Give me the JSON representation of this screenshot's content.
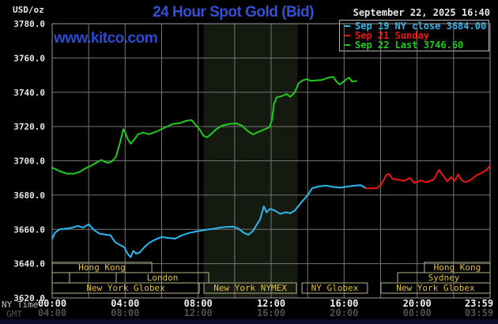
{
  "header": {
    "units_label": "USD/oz",
    "title": "24 Hour Spot Gold (Bid)",
    "datetime": "September 22, 2025 16:40",
    "watermark": "www.kitco.com"
  },
  "colors": {
    "background": "#000000",
    "title_blue": "#3550d4",
    "watermark_blue": "#2c49cf",
    "cyan": "#2cb8f0",
    "red": "#ee1515",
    "green": "#1ecb1e",
    "grid": "#757575",
    "plot_border": "#9a9a9a",
    "session_border": "#b6b686",
    "session_text": "#e3bf3f",
    "axis_text": "#e6e6e6",
    "gmt_text": "#505050",
    "nymex_band": "#151a10",
    "bottom_bar": "#0c0c2c"
  },
  "axes": {
    "y_label_suffix": ".0",
    "y_min": 3620,
    "y_max": 3780,
    "y_step": 20,
    "x_hours": 24,
    "x_grid_step_hours": 2,
    "ny_row_label": "NY Time",
    "gmt_row_label": "GMT",
    "ny_ticks": [
      {
        "hour": 0,
        "label": "00:00"
      },
      {
        "hour": 4,
        "label": "04:00"
      },
      {
        "hour": 8,
        "label": "08:00"
      },
      {
        "hour": 12,
        "label": "12:00"
      },
      {
        "hour": 16,
        "label": "16:00"
      },
      {
        "hour": 20,
        "label": "20:00"
      },
      {
        "hour": 23.98,
        "label": "23:59"
      }
    ],
    "gmt_ticks": [
      {
        "hour": 0,
        "label": "04:00"
      },
      {
        "hour": 4,
        "label": "08:00"
      },
      {
        "hour": 8,
        "label": "12:00"
      },
      {
        "hour": 12,
        "label": "16:00"
      },
      {
        "hour": 16,
        "label": "20:00"
      },
      {
        "hour": 20,
        "label": "00:00"
      },
      {
        "hour": 23.98,
        "label": "03:59"
      }
    ]
  },
  "nymex_band": {
    "start_hour": 8.3,
    "end_hour": 13.45
  },
  "sessions": [
    {
      "row": 0,
      "boxes": [
        {
          "label": "Hong Kong",
          "start_hour": 0,
          "end_hour": 5.46
        },
        {
          "label": "Hong Kong",
          "start_hour": 20.4,
          "end_hour": 24
        }
      ]
    },
    {
      "row": 1,
      "boxes": [
        {
          "label": "",
          "start_hour": 0,
          "end_hour": 0.95
        },
        {
          "label": "",
          "start_hour": 0.95,
          "end_hour": 3.51
        },
        {
          "label": "London",
          "start_hour": 3.51,
          "end_hour": 8.58
        },
        {
          "label": "Sydney",
          "start_hour": 18.93,
          "end_hour": 24
        }
      ]
    },
    {
      "row": 2,
      "boxes": [
        {
          "label": "New York Globex",
          "start_hour": 0,
          "end_hour": 8.06
        },
        {
          "label": "New York NYMEX",
          "start_hour": 8.32,
          "end_hour": 13.39
        },
        {
          "label": "NY Globex",
          "start_hour": 13.69,
          "end_hour": 17.28
        },
        {
          "label": "New York Globex",
          "start_hour": 18.02,
          "end_hour": 24
        }
      ]
    }
  ],
  "chart_data": {
    "type": "line",
    "title": "24 Hour Spot Gold (Bid)",
    "xlabel": "NY Time (hours)",
    "ylabel": "USD/oz",
    "xlim": [
      0,
      24
    ],
    "ylim": [
      3620,
      3780
    ],
    "grid": true,
    "legend_position": "top-right",
    "series": [
      {
        "name": "Sep 19 NY close 3684.00",
        "color_key": "cyan",
        "points": [
          [
            0,
            3654.5
          ],
          [
            0.15,
            3658
          ],
          [
            0.4,
            3660
          ],
          [
            0.8,
            3660.5
          ],
          [
            1.1,
            3661
          ],
          [
            1.4,
            3662
          ],
          [
            1.7,
            3661
          ],
          [
            2.0,
            3663
          ],
          [
            2.3,
            3659.5
          ],
          [
            2.6,
            3657.5
          ],
          [
            2.9,
            3657
          ],
          [
            3.2,
            3656.5
          ],
          [
            3.45,
            3652.5
          ],
          [
            3.7,
            3651
          ],
          [
            3.95,
            3649.5
          ],
          [
            4.15,
            3645.5
          ],
          [
            4.3,
            3643.8
          ],
          [
            4.45,
            3647.5
          ],
          [
            4.6,
            3645.8
          ],
          [
            4.8,
            3646.5
          ],
          [
            5.0,
            3649
          ],
          [
            5.3,
            3652
          ],
          [
            5.6,
            3653.8
          ],
          [
            6.0,
            3655.6
          ],
          [
            6.35,
            3655
          ],
          [
            6.75,
            3654.6
          ],
          [
            7.1,
            3656.5
          ],
          [
            7.5,
            3657.9
          ],
          [
            7.9,
            3658.8
          ],
          [
            8.3,
            3659.5
          ],
          [
            8.8,
            3660.3
          ],
          [
            9.3,
            3661.2
          ],
          [
            9.9,
            3661.6
          ],
          [
            10.2,
            3660.5
          ],
          [
            10.5,
            3658
          ],
          [
            10.75,
            3656.8
          ],
          [
            11.0,
            3659
          ],
          [
            11.2,
            3662.5
          ],
          [
            11.4,
            3666
          ],
          [
            11.6,
            3673.5
          ],
          [
            11.75,
            3670
          ],
          [
            11.95,
            3672
          ],
          [
            12.2,
            3671
          ],
          [
            12.5,
            3669
          ],
          [
            12.8,
            3670
          ],
          [
            13.05,
            3669.4
          ],
          [
            13.3,
            3671
          ],
          [
            13.6,
            3675
          ],
          [
            13.8,
            3677.5
          ],
          [
            14.0,
            3680
          ],
          [
            14.25,
            3684
          ],
          [
            14.6,
            3685
          ],
          [
            15.0,
            3685.5
          ],
          [
            15.4,
            3684.8
          ],
          [
            15.8,
            3684.3
          ],
          [
            16.2,
            3685
          ],
          [
            16.6,
            3685.5
          ],
          [
            16.9,
            3685.8
          ],
          [
            17.2,
            3684
          ]
        ]
      },
      {
        "name": "Sep 21 Sunday",
        "color_key": "red",
        "points": [
          [
            17.2,
            3684
          ],
          [
            17.8,
            3684
          ],
          [
            18.05,
            3686.5
          ],
          [
            18.3,
            3691.5
          ],
          [
            18.45,
            3692.5
          ],
          [
            18.65,
            3689.5
          ],
          [
            18.95,
            3689
          ],
          [
            19.3,
            3688.3
          ],
          [
            19.6,
            3690
          ],
          [
            19.85,
            3687
          ],
          [
            20.2,
            3688.5
          ],
          [
            20.5,
            3687.5
          ],
          [
            20.9,
            3689
          ],
          [
            21.2,
            3694.7
          ],
          [
            21.45,
            3691
          ],
          [
            21.65,
            3688
          ],
          [
            21.85,
            3690.5
          ],
          [
            22.05,
            3688.3
          ],
          [
            22.25,
            3692
          ],
          [
            22.45,
            3688.5
          ],
          [
            22.65,
            3687.5
          ],
          [
            22.95,
            3689
          ],
          [
            23.25,
            3691.5
          ],
          [
            23.55,
            3693
          ],
          [
            23.8,
            3694.5
          ],
          [
            23.98,
            3697
          ]
        ]
      },
      {
        "name": "Sep 22 Last 3746.60",
        "color_key": "green",
        "points": [
          [
            0,
            3696
          ],
          [
            0.4,
            3694
          ],
          [
            0.8,
            3692.5
          ],
          [
            1.2,
            3692.5
          ],
          [
            1.5,
            3693.5
          ],
          [
            1.8,
            3695.5
          ],
          [
            2.2,
            3697.5
          ],
          [
            2.5,
            3699.5
          ],
          [
            2.7,
            3700.5
          ],
          [
            2.9,
            3699.3
          ],
          [
            3.1,
            3698.8
          ],
          [
            3.3,
            3700
          ],
          [
            3.5,
            3702.5
          ],
          [
            3.65,
            3708
          ],
          [
            3.8,
            3714
          ],
          [
            3.9,
            3718.5
          ],
          [
            4.0,
            3716.5
          ],
          [
            4.15,
            3712.5
          ],
          [
            4.3,
            3710
          ],
          [
            4.5,
            3712.5
          ],
          [
            4.7,
            3715.5
          ],
          [
            5.0,
            3716.5
          ],
          [
            5.3,
            3715.5
          ],
          [
            5.7,
            3717
          ],
          [
            6.0,
            3718.5
          ],
          [
            6.3,
            3720
          ],
          [
            6.6,
            3721.5
          ],
          [
            7.0,
            3722
          ],
          [
            7.4,
            3723.5
          ],
          [
            7.65,
            3723.7
          ],
          [
            7.9,
            3720.5
          ],
          [
            8.1,
            3718
          ],
          [
            8.3,
            3714.5
          ],
          [
            8.5,
            3713.8
          ],
          [
            8.7,
            3715.5
          ],
          [
            9.0,
            3718.5
          ],
          [
            9.3,
            3720.5
          ],
          [
            9.7,
            3721.5
          ],
          [
            10.1,
            3721.8
          ],
          [
            10.4,
            3720.5
          ],
          [
            10.7,
            3717.5
          ],
          [
            11.0,
            3715.4
          ],
          [
            11.3,
            3716.8
          ],
          [
            11.6,
            3718.2
          ],
          [
            11.9,
            3719.5
          ],
          [
            12.05,
            3724
          ],
          [
            12.15,
            3733
          ],
          [
            12.3,
            3737
          ],
          [
            12.6,
            3737.8
          ],
          [
            12.85,
            3738.9
          ],
          [
            13.05,
            3737.4
          ],
          [
            13.3,
            3740
          ],
          [
            13.5,
            3745.2
          ],
          [
            13.7,
            3746.8
          ],
          [
            13.95,
            3747.7
          ],
          [
            14.2,
            3746.6
          ],
          [
            14.5,
            3747
          ],
          [
            14.8,
            3747.2
          ],
          [
            15.1,
            3748.4
          ],
          [
            15.4,
            3749
          ],
          [
            15.6,
            3746
          ],
          [
            15.75,
            3744.5
          ],
          [
            16.0,
            3746.5
          ],
          [
            16.25,
            3748.6
          ],
          [
            16.45,
            3746.2
          ],
          [
            16.67,
            3746.6
          ]
        ]
      }
    ]
  }
}
